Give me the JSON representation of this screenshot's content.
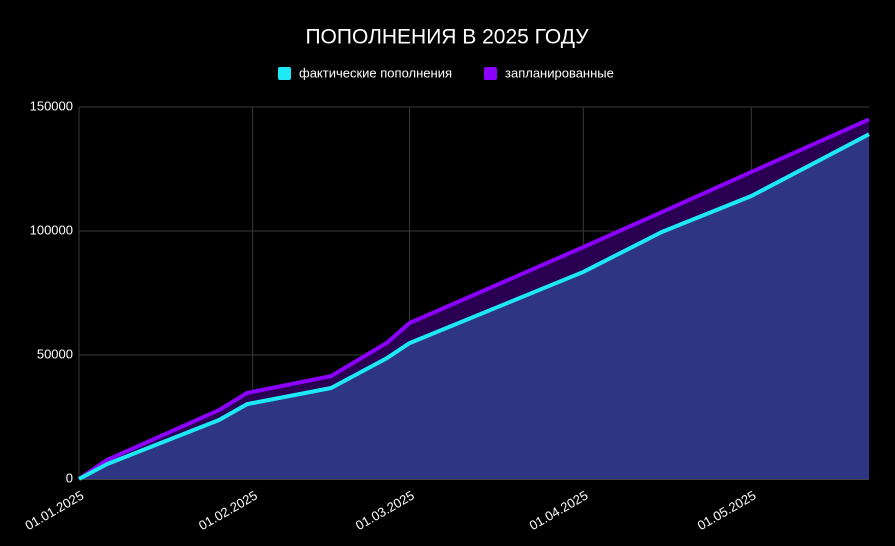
{
  "chart_data": {
    "type": "area",
    "title": "ПОПОЛНЕНИЯ В 2025 ГОДУ",
    "x": [
      "01.01.2025",
      "06.01.2025",
      "26.01.2025",
      "31.01.2025",
      "15.02.2025",
      "25.02.2025",
      "01.03.2025",
      "01.04.2025",
      "15.04.2025",
      "01.05.2025",
      "22.05.2025"
    ],
    "series": [
      {
        "name": "фактические пополнения",
        "color": "#1de9f6",
        "fill": "#2e3582",
        "values": [
          0,
          6000,
          23800,
          30200,
          36700,
          48800,
          54800,
          83500,
          99600,
          114100,
          139000
        ]
      },
      {
        "name": "запланированные",
        "color": "#8c00ff",
        "fill": "#2a0052",
        "values": [
          0,
          7700,
          27800,
          34700,
          41500,
          55000,
          62900,
          93500,
          107600,
          123800,
          145000
        ]
      }
    ],
    "xlim": [
      "01.01.2025",
      "22.05.2025"
    ],
    "xticks": [
      "01.01.2025",
      "01.02.2025",
      "01.03.2025",
      "01.04.2025",
      "01.05.2025"
    ],
    "ylim": [
      0,
      150000
    ],
    "yticks": [
      0,
      50000,
      100000,
      150000
    ],
    "grid": true
  }
}
